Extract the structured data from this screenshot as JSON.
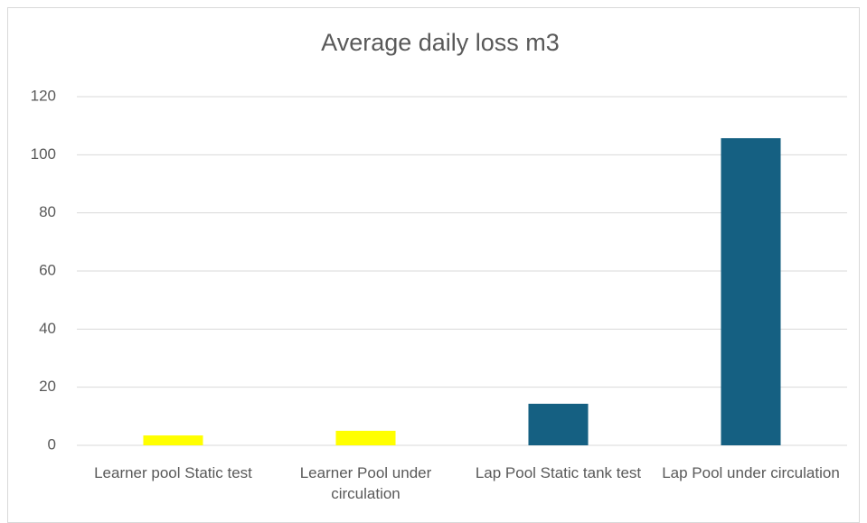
{
  "chart_data": {
    "type": "bar",
    "title": "Average daily loss m3",
    "categories": [
      "Learner pool Static test",
      "Learner Pool under circulation",
      "Lap Pool Static tank test",
      "Lap Pool under circulation"
    ],
    "values": [
      3.4,
      5.0,
      14.3,
      105.7
    ],
    "colors": [
      "#ffff00",
      "#ffff00",
      "#156082",
      "#156082"
    ],
    "ylim": [
      0,
      120
    ],
    "yticks": [
      0,
      20,
      40,
      60,
      80,
      100,
      120
    ],
    "grid": true
  }
}
